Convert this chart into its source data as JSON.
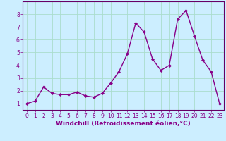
{
  "x": [
    0,
    1,
    2,
    3,
    4,
    5,
    6,
    7,
    8,
    9,
    10,
    11,
    12,
    13,
    14,
    15,
    16,
    17,
    18,
    19,
    20,
    21,
    22,
    23
  ],
  "y": [
    1.0,
    1.2,
    2.3,
    1.8,
    1.7,
    1.7,
    1.9,
    1.6,
    1.5,
    1.8,
    2.6,
    3.5,
    4.9,
    7.3,
    6.6,
    4.5,
    3.6,
    4.0,
    7.6,
    8.3,
    6.3,
    4.4,
    3.5,
    1.0
  ],
  "line_color": "#880088",
  "marker": "D",
  "marker_size": 2.0,
  "linewidth": 1.0,
  "xlabel": "Windchill (Refroidissement éolien,°C)",
  "xlabel_fontsize": 6.5,
  "ylim": [
    0.5,
    9.0
  ],
  "xlim": [
    -0.5,
    23.5
  ],
  "yticks": [
    1,
    2,
    3,
    4,
    5,
    6,
    7,
    8
  ],
  "xticks": [
    0,
    1,
    2,
    3,
    4,
    5,
    6,
    7,
    8,
    9,
    10,
    11,
    12,
    13,
    14,
    15,
    16,
    17,
    18,
    19,
    20,
    21,
    22,
    23
  ],
  "tick_fontsize": 5.5,
  "bg_color": "#cceeff",
  "grid_color": "#aaddcc",
  "axis_color": "#880088",
  "spine_color": "#660066"
}
